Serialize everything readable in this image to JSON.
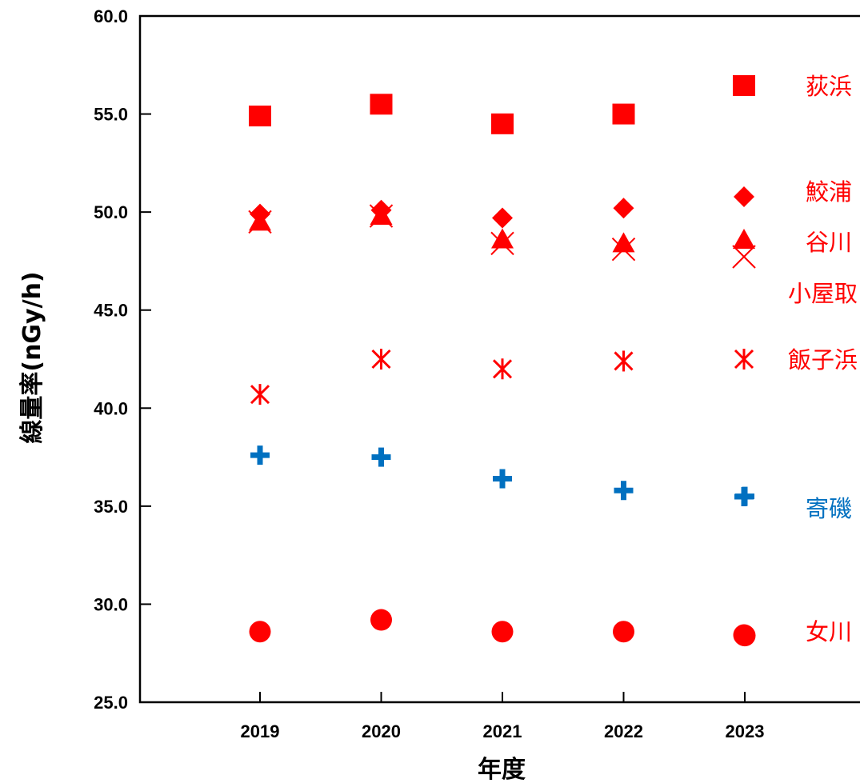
{
  "chart_data": {
    "type": "scatter",
    "title": "",
    "xlabel": "年度",
    "ylabel": "線量率(nGy/h)",
    "x": [
      2019,
      2020,
      2021,
      2022,
      2023
    ],
    "x_tick_labels": [
      "2019",
      "2020",
      "2021",
      "2022",
      "2023"
    ],
    "ylim": [
      25.0,
      60.0
    ],
    "y_tick_labels": [
      "60.0",
      "55.0",
      "50.0",
      "45.0",
      "40.0",
      "35.0",
      "30.0",
      "25.0"
    ],
    "grid": false,
    "legend_position": "right",
    "series": [
      {
        "name": "荻浜",
        "marker": "square",
        "color": "#ff0000",
        "values": [
          54.9,
          55.5,
          54.5,
          55.0,
          null
        ]
      },
      {
        "name": "鮫浦",
        "marker": "diamond",
        "color": "#ff0000",
        "values": [
          49.9,
          50.1,
          49.7,
          50.2,
          null
        ]
      },
      {
        "name": "谷川",
        "marker": "triangle",
        "color": "#ff0000",
        "values": [
          49.5,
          49.8,
          48.6,
          48.4,
          null
        ]
      },
      {
        "name": "小屋取",
        "marker": "x",
        "color": "#ff0000",
        "values": [
          49.5,
          49.8,
          48.4,
          48.1,
          null
        ]
      },
      {
        "name": "飯子浜",
        "marker": "asterisk",
        "color": "#ff0000",
        "values": [
          40.7,
          42.5,
          42.0,
          42.4,
          null
        ]
      },
      {
        "name": "寄磯",
        "marker": "plus",
        "color": "#0070c0",
        "values": [
          37.6,
          37.5,
          36.4,
          35.8,
          35.5
        ]
      },
      {
        "name": "女川",
        "marker": "circle",
        "color": "#ff0000",
        "values": [
          28.6,
          29.2,
          28.6,
          28.6,
          28.4
        ]
      }
    ]
  }
}
